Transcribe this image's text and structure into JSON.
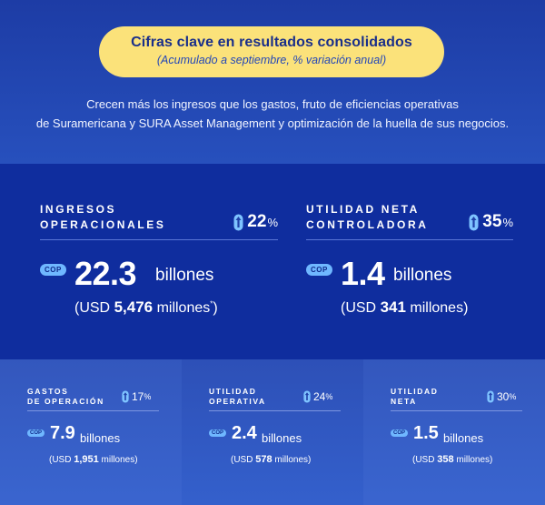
{
  "header": {
    "title": "Cifras clave en resultados consolidados",
    "subtitle": "(Acumulado a septiembre, % variación anual)"
  },
  "intro": {
    "line1": "Crecen más los ingresos que los gastos, fruto de eficiencias operativas",
    "line2": "de Suramericana y SURA Asset Management y optimización de la huella de sus negocios."
  },
  "currency_tag": "COP",
  "percent_symbol": "%",
  "big_metrics": [
    {
      "label_line1": "INGRESOS",
      "label_line2": "OPERACIONALES",
      "change": "22",
      "value": "22.3",
      "unit": "billones",
      "usd_prefix": "(USD",
      "usd_value": "5,476",
      "usd_unit": "millones",
      "usd_note": "*",
      "usd_suffix": ")"
    },
    {
      "label_line1": "UTILIDAD NETA",
      "label_line2": "CONTROLADORA",
      "change": "35",
      "value": "1.4",
      "unit": "billones",
      "usd_prefix": "(USD",
      "usd_value": "341",
      "usd_unit": "millones",
      "usd_note": "",
      "usd_suffix": ")"
    }
  ],
  "small_metrics": [
    {
      "label_line1": "GASTOS",
      "label_line2": "DE OPERACIÓN",
      "change": "17",
      "value": "7.9",
      "unit": "billones",
      "usd_prefix": "(USD",
      "usd_value": "1,951",
      "usd_unit": "millones)"
    },
    {
      "label_line1": "UTILIDAD",
      "label_line2": "OPERATIVA",
      "change": "24",
      "value": "2.4",
      "unit": "billones",
      "usd_prefix": "(USD",
      "usd_value": "578",
      "usd_unit": "millones)"
    },
    {
      "label_line1": "UTILIDAD",
      "label_line2": "NETA",
      "change": "30",
      "value": "1.5",
      "unit": "billones",
      "usd_prefix": "(USD",
      "usd_value": "358",
      "usd_unit": "millones)"
    }
  ],
  "colors": {
    "pill": "#fbe27a",
    "dark_band": "#0f2d9e",
    "cop_tag": "#6fb7ff",
    "arrow": "#7ec3ff"
  },
  "icons": {
    "change": "up-arrow-icon"
  }
}
